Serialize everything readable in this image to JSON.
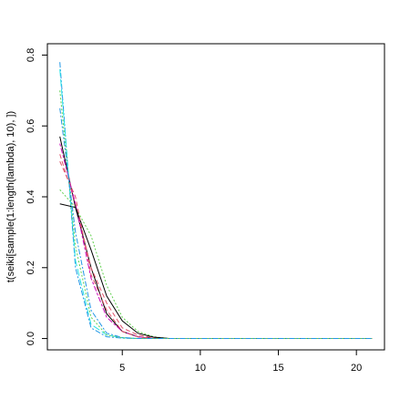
{
  "chart_data": {
    "type": "line",
    "ylabel": "t(seiki[sample(1:length(lambda), 10), ])",
    "x": [
      1,
      2,
      3,
      4,
      5,
      6,
      7,
      8,
      9,
      10,
      11,
      12,
      13,
      14,
      15,
      16,
      17,
      18,
      19,
      20,
      21
    ],
    "xlim": [
      0.2,
      21.8
    ],
    "xticks": [
      5,
      10,
      15,
      20
    ],
    "ylim": [
      -0.032,
      0.832
    ],
    "yticks": [
      {
        "value": 0,
        "label": "0.0"
      },
      0.2,
      0.4,
      0.6,
      0.8
    ],
    "series": [
      {
        "color": "#000000",
        "values": [
          0.57,
          0.37,
          0.2,
          0.07,
          0.02,
          0.005,
          0,
          0,
          0,
          0,
          0,
          0,
          0,
          0,
          0,
          0,
          0,
          0,
          0,
          0,
          0
        ]
      },
      {
        "color": "#df536b",
        "values": [
          0.52,
          0.38,
          0.2,
          0.1,
          0.03,
          0.01,
          0.002,
          0,
          0,
          0,
          0,
          0,
          0,
          0,
          0,
          0,
          0,
          0,
          0,
          0,
          0
        ]
      },
      {
        "color": "#61d04f",
        "values": [
          0.42,
          0.37,
          0.29,
          0.15,
          0.06,
          0.02,
          0.005,
          0,
          0,
          0,
          0,
          0,
          0,
          0,
          0,
          0,
          0,
          0,
          0,
          0,
          0
        ]
      },
      {
        "color": "#2297e6",
        "values": [
          0.78,
          0.2,
          0.03,
          0.005,
          0.001,
          0,
          0,
          0,
          0,
          0,
          0,
          0,
          0,
          0,
          0,
          0,
          0,
          0,
          0,
          0,
          0
        ]
      },
      {
        "color": "#28e2e5",
        "values": [
          0.76,
          0.22,
          0.04,
          0.01,
          0.002,
          0,
          0,
          0,
          0,
          0,
          0,
          0,
          0,
          0,
          0,
          0,
          0,
          0,
          0,
          0,
          0
        ]
      },
      {
        "color": "#cd0bbc",
        "values": [
          0.55,
          0.38,
          0.17,
          0.06,
          0.02,
          0.005,
          0,
          0,
          0,
          0,
          0,
          0,
          0,
          0,
          0,
          0,
          0,
          0,
          0,
          0,
          0
        ]
      },
      {
        "color": "#000000",
        "values": [
          0.38,
          0.37,
          0.25,
          0.12,
          0.05,
          0.015,
          0.004,
          0,
          0,
          0,
          0,
          0,
          0,
          0,
          0,
          0,
          0,
          0,
          0,
          0,
          0
        ]
      },
      {
        "color": "#df536b",
        "values": [
          0.5,
          0.4,
          0.18,
          0.08,
          0.02,
          0.005,
          0,
          0,
          0,
          0,
          0,
          0,
          0,
          0,
          0,
          0,
          0,
          0,
          0,
          0,
          0
        ]
      },
      {
        "color": "#61d04f",
        "values": [
          0.7,
          0.26,
          0.06,
          0.01,
          0.002,
          0,
          0,
          0,
          0,
          0,
          0,
          0,
          0,
          0,
          0,
          0,
          0,
          0,
          0,
          0,
          0
        ]
      },
      {
        "color": "#2297e6",
        "values": [
          0.65,
          0.3,
          0.08,
          0.015,
          0.003,
          0,
          0,
          0,
          0,
          0,
          0,
          0,
          0,
          0,
          0,
          0,
          0,
          0,
          0,
          0,
          0
        ]
      }
    ]
  }
}
